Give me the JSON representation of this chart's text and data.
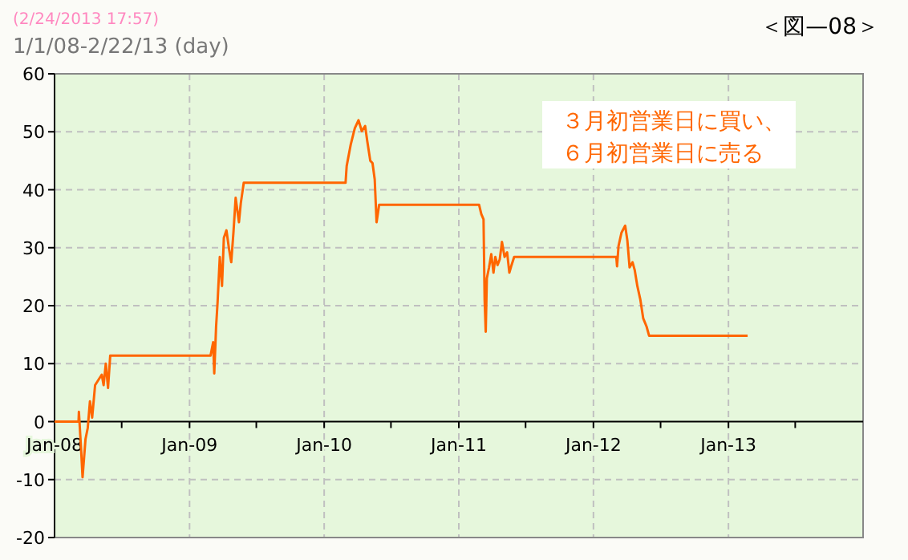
{
  "chart_data": {
    "type": "step",
    "subtitle": "(2/24/2013 17:57)",
    "title": "1/1/08-2/22/13 (day)",
    "annotations": [
      "＜図—08＞",
      "３月初営業日に買い、",
      "６月初営業日に売る"
    ],
    "xlim": [
      "2008-01-01",
      "2014-01-01"
    ],
    "xticks": [
      {
        "value": "2008-01-01",
        "label": "Jan-08"
      },
      {
        "value": "2008-07-01",
        "label": null
      },
      {
        "value": "2009-01-01",
        "label": "Jan-09"
      },
      {
        "value": "2009-07-01",
        "label": null
      },
      {
        "value": "2010-01-01",
        "label": "Jan-10"
      },
      {
        "value": "2010-07-01",
        "label": null
      },
      {
        "value": "2011-01-01",
        "label": "Jan-11"
      },
      {
        "value": "2011-07-01",
        "label": null
      },
      {
        "value": "2012-01-01",
        "label": "Jan-12"
      },
      {
        "value": "2012-07-01",
        "label": null
      },
      {
        "value": "2013-01-01",
        "label": "Jan-13"
      },
      {
        "value": "2013-07-01",
        "label": null
      }
    ],
    "ylim": [
      -20,
      60
    ],
    "yticks": [
      -20,
      -10,
      0,
      10,
      20,
      30,
      40,
      50,
      60
    ],
    "grid": true,
    "series": [
      {
        "color": "#ff6600",
        "x": [
          "2008-01-01",
          "2008-03-06",
          "2008-03-07",
          "2008-03-13",
          "2008-03-17",
          "2008-03-25",
          "2008-03-31",
          "2008-04-06",
          "2008-04-12",
          "2008-04-20",
          "2008-04-29",
          "2008-05-08",
          "2008-05-13",
          "2008-05-19",
          "2008-05-25",
          "2008-05-31",
          "2009-02-27",
          "2009-03-06",
          "2009-03-09",
          "2009-03-14",
          "2009-03-18",
          "2009-03-24",
          "2009-03-30",
          "2009-04-04",
          "2009-04-11",
          "2009-04-18",
          "2009-04-24",
          "2009-04-30",
          "2009-05-06",
          "2009-05-15",
          "2009-05-20",
          "2009-05-28",
          "2010-02-28",
          "2010-03-03",
          "2010-03-14",
          "2010-03-25",
          "2010-04-04",
          "2010-04-13",
          "2010-04-22",
          "2010-04-28",
          "2010-05-06",
          "2010-05-12",
          "2010-05-18",
          "2010-05-23",
          "2010-05-30",
          "2011-02-25",
          "2011-03-03",
          "2011-03-09",
          "2011-03-12",
          "2011-03-15",
          "2011-03-18",
          "2011-03-24",
          "2011-03-30",
          "2011-04-05",
          "2011-04-10",
          "2011-04-16",
          "2011-04-22",
          "2011-04-28",
          "2011-05-05",
          "2011-05-12",
          "2011-05-18",
          "2011-05-24",
          "2011-05-31",
          "2012-03-03",
          "2012-03-05",
          "2012-03-09",
          "2012-03-17",
          "2012-03-27",
          "2012-04-02",
          "2012-04-08",
          "2012-04-16",
          "2012-04-22",
          "2012-04-29",
          "2012-05-07",
          "2012-05-15",
          "2012-05-24",
          "2012-05-31",
          "2013-02-22"
        ],
        "values": [
          0,
          0,
          1.7,
          -4.8,
          -9.6,
          -3,
          -1.1,
          3.5,
          0.7,
          6.3,
          7.2,
          8.1,
          6.3,
          10,
          5.8,
          11.4,
          11.4,
          13.7,
          8.3,
          16.4,
          20.6,
          28.4,
          23.4,
          31.7,
          33,
          29.8,
          27.5,
          32.6,
          38.6,
          34.4,
          37.7,
          41.2,
          41.2,
          44.1,
          47.8,
          50.6,
          52,
          50.1,
          51,
          48.3,
          45,
          44.6,
          41.8,
          34.4,
          37.4,
          37.4,
          35.8,
          34.9,
          21,
          15.5,
          24.7,
          26.6,
          28.9,
          25.7,
          28.4,
          27,
          28,
          31,
          28.4,
          29.2,
          25.7,
          27,
          28.4,
          28.4,
          26.8,
          30.3,
          32.6,
          33.8,
          31.2,
          26.6,
          27.5,
          26.1,
          23.4,
          21.1,
          17.8,
          16.4,
          14.8,
          14.8
        ]
      }
    ]
  }
}
